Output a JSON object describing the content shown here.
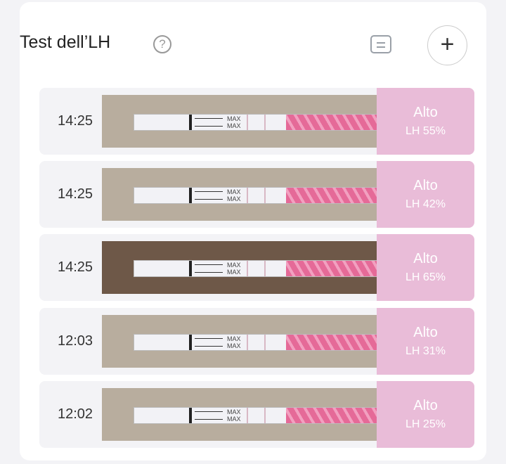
{
  "header": {
    "title": "Test dell’LH",
    "help_icon": "?",
    "add_icon": "+"
  },
  "colors": {
    "result_bg": "#e9bcd8",
    "strip_pink": "#e56a98"
  },
  "strip_text": "MAX",
  "records": [
    {
      "time": "14:25",
      "level": "Alto",
      "lh": "LH 55%"
    },
    {
      "time": "14:25",
      "level": "Alto",
      "lh": "LH 42%"
    },
    {
      "time": "14:25",
      "level": "Alto",
      "lh": "LH 65%"
    },
    {
      "time": "12:03",
      "level": "Alto",
      "lh": "LH 31%"
    },
    {
      "time": "12:02",
      "level": "Alto",
      "lh": "LH 25%"
    }
  ]
}
